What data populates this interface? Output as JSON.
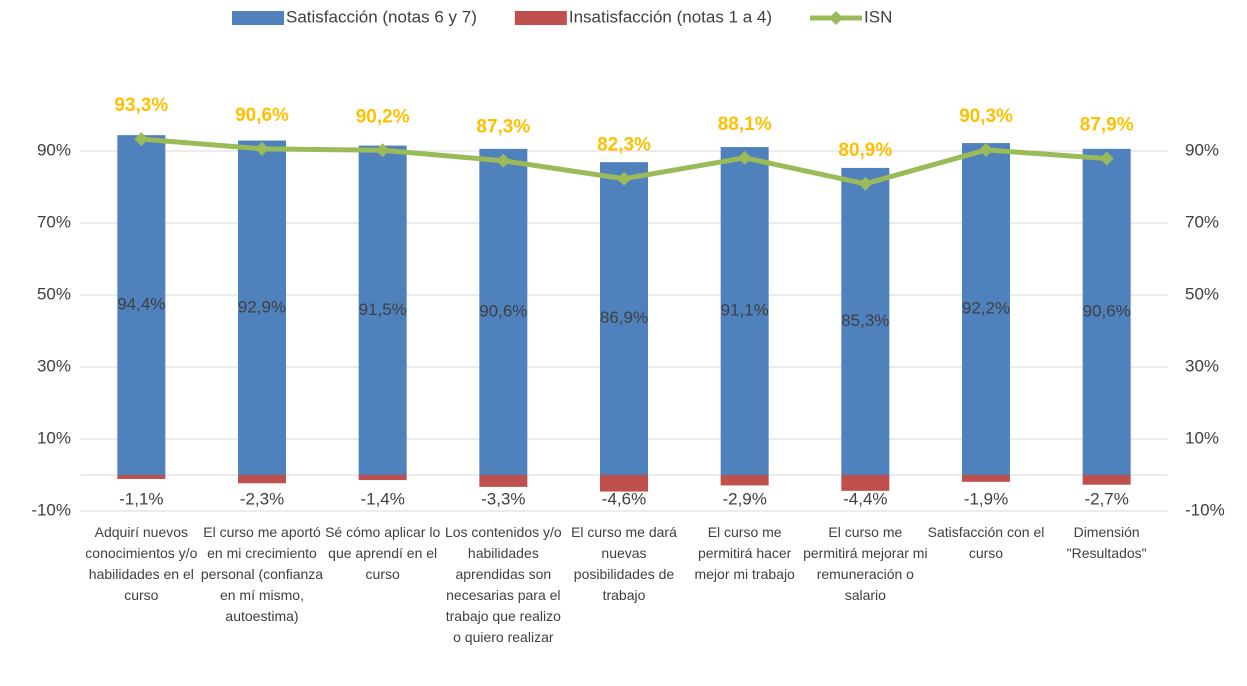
{
  "chart_data": {
    "type": "bar",
    "categories": [
      "Adquirí nuevos conocimientos y/o habilidades en el curso",
      "El curso me aportó en mi crecimiento personal (confianza en mí mismo, autoestima)",
      "Sé cómo aplicar lo que aprendí en el curso",
      "Los contenidos y/o habilidades aprendidas son necesarias para el trabajo que realizo o quiero realizar",
      "El curso me dará nuevas posibilidades de trabajo",
      "El curso me permitirá hacer mejor mi trabajo",
      "El curso me permitirá mejorar mi remuneración o salario",
      "Satisfacción con el curso",
      "Dimensión \"Resultados\""
    ],
    "series": [
      {
        "name": "Satisfacción (notas 6 y 7)",
        "type": "bar",
        "color": "#4f81bd",
        "values": [
          94.4,
          92.9,
          91.5,
          90.6,
          86.9,
          91.1,
          85.3,
          92.2,
          90.6
        ],
        "value_labels": [
          "94,4%",
          "92,9%",
          "91,5%",
          "90,6%",
          "86,9%",
          "91,1%",
          "85,3%",
          "92,2%",
          "90,6%"
        ]
      },
      {
        "name": "Insatisfacción (notas 1 a 4)",
        "type": "bar",
        "color": "#c0504d",
        "values": [
          -1.1,
          -2.3,
          -1.4,
          -3.3,
          -4.6,
          -2.9,
          -4.4,
          -1.9,
          -2.7
        ],
        "value_labels": [
          "-1,1%",
          "-2,3%",
          "-1,4%",
          "-3,3%",
          "-4,6%",
          "-2,9%",
          "-4,4%",
          "-1,9%",
          "-2,7%"
        ]
      },
      {
        "name": "ISN",
        "type": "line",
        "color": "#9bbb59",
        "label_color": "#ffc000",
        "values": [
          93.3,
          90.6,
          90.2,
          87.3,
          82.3,
          88.1,
          80.9,
          90.3,
          87.9
        ],
        "value_labels": [
          "93,3%",
          "90,6%",
          "90,2%",
          "87,3%",
          "82,3%",
          "88,1%",
          "80,9%",
          "90,3%",
          "87,9%"
        ]
      }
    ],
    "ylim": [
      -10,
      100
    ],
    "yticks": [
      {
        "value": -10,
        "label": "-10%"
      },
      {
        "value": 10,
        "label": "10%"
      },
      {
        "value": 30,
        "label": "30%"
      },
      {
        "value": 50,
        "label": "50%"
      },
      {
        "value": 70,
        "label": "70%"
      },
      {
        "value": 90,
        "label": "90%"
      }
    ],
    "grid": true,
    "legend": "top"
  }
}
